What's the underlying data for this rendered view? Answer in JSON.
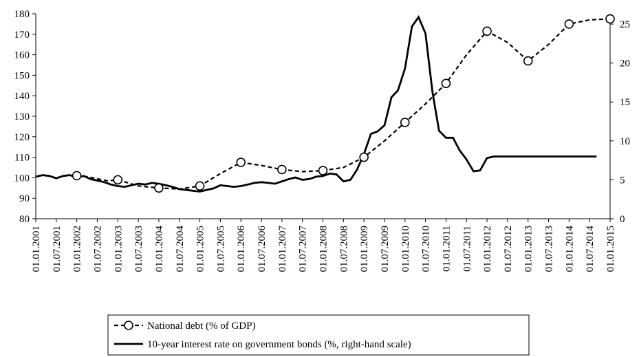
{
  "chart_data": {
    "type": "line",
    "title": "",
    "xlabel": "",
    "ylabel": "",
    "x_ticks": [
      "01.01.2001",
      "01.07.2001",
      "01.01.2002",
      "01.07.2002",
      "01.01.2003",
      "01.07.2003",
      "01.01.2004",
      "01.07.2004",
      "01.01.2005",
      "01.07.2005",
      "01.01.2006",
      "01.07.2006",
      "01.01.2007",
      "01.07.2007",
      "01.01.2008",
      "01.07.2008",
      "01.01.2009",
      "01.07.2009",
      "01.01.2010",
      "01.07.2010",
      "01.01.2011",
      "01.07.2011",
      "01.01.2012",
      "01.07.2012",
      "01.01.2013",
      "01.07.2013",
      "01.01.2014",
      "01.07.2014",
      "01.01.2015"
    ],
    "y_left": {
      "ylim": [
        80,
        180
      ],
      "ticks": [
        "80",
        "90",
        "100",
        "110",
        "120",
        "130",
        "140",
        "150",
        "160",
        "170",
        "180"
      ]
    },
    "y_right": {
      "ylim": [
        0,
        26.33
      ],
      "ticks": [
        "0",
        "5",
        "10",
        "15",
        "20",
        "25"
      ]
    },
    "legend_position": "bottom-center",
    "series": [
      {
        "name": "National debt (% of GDP)",
        "axis": "left",
        "style": "dashed-with-circle-markers",
        "x": [
          2002.0,
          2002.25,
          2002.5,
          2002.75,
          2003.0,
          2003.5,
          2004.0,
          2004.5,
          2005.0,
          2005.5,
          2006.0,
          2006.5,
          2007.0,
          2007.5,
          2008.0,
          2008.5,
          2009.0,
          2009.5,
          2010.0,
          2010.5,
          2011.0,
          2011.5,
          2012.0,
          2012.5,
          2013.0,
          2013.5,
          2014.0,
          2014.5,
          2015.0
        ],
        "values": [
          101,
          100.5,
          99.5,
          98.5,
          99,
          96,
          95,
          94.5,
          96,
          102,
          107.5,
          106,
          104,
          103,
          103.5,
          105,
          110,
          118,
          127,
          136,
          146,
          160,
          171.5,
          166,
          157,
          165,
          175,
          177,
          177.5
        ],
        "markers_at": [
          2002.0,
          2003.0,
          2004.0,
          2005.0,
          2006.0,
          2007.0,
          2008.0,
          2009.0,
          2010.0,
          2011.0,
          2012.0,
          2013.0,
          2014.0,
          2015.0
        ]
      },
      {
        "name": "10-year interest rate on government bonds (%, right-hand scale)",
        "axis": "right",
        "style": "solid",
        "x": [
          2001.0,
          2001.17,
          2001.33,
          2001.5,
          2001.67,
          2001.83,
          2002.0,
          2002.17,
          2002.33,
          2002.5,
          2002.67,
          2002.83,
          2003.0,
          2003.17,
          2003.33,
          2003.5,
          2003.67,
          2003.83,
          2004.0,
          2004.17,
          2004.33,
          2004.5,
          2004.67,
          2004.83,
          2005.0,
          2005.17,
          2005.33,
          2005.5,
          2005.67,
          2005.83,
          2006.0,
          2006.17,
          2006.33,
          2006.5,
          2006.67,
          2006.83,
          2007.0,
          2007.17,
          2007.33,
          2007.5,
          2007.67,
          2007.83,
          2008.0,
          2008.17,
          2008.33,
          2008.5,
          2008.67,
          2008.83,
          2009.0,
          2009.17,
          2009.33,
          2009.5,
          2009.67,
          2009.83,
          2010.0,
          2010.17,
          2010.33,
          2010.5,
          2010.67,
          2010.83,
          2011.0,
          2011.17,
          2011.33,
          2011.5,
          2011.67,
          2011.83,
          2012.0,
          2012.17,
          2012.33,
          2012.5,
          2012.67,
          2012.83,
          2013.0,
          2013.17,
          2013.33,
          2013.5,
          2013.67,
          2013.83,
          2014.0,
          2014.17,
          2014.33,
          2014.5,
          2014.67
        ],
        "values": [
          5.4,
          5.6,
          5.5,
          5.2,
          5.5,
          5.6,
          5.3,
          5.5,
          5.1,
          4.9,
          4.7,
          4.4,
          4.2,
          4.1,
          4.3,
          4.5,
          4.4,
          4.6,
          4.5,
          4.3,
          4.1,
          3.8,
          3.7,
          3.6,
          3.5,
          3.7,
          3.9,
          4.3,
          4.2,
          4.1,
          4.2,
          4.4,
          4.6,
          4.7,
          4.6,
          4.5,
          4.8,
          5.1,
          5.3,
          5.0,
          5.1,
          5.4,
          5.5,
          5.8,
          5.7,
          4.8,
          5.0,
          6.3,
          8.3,
          10.9,
          11.2,
          12.0,
          15.6,
          16.5,
          19.3,
          24.7,
          25.9,
          23.8,
          16.3,
          11.3,
          10.4,
          10.4,
          8.8,
          7.6,
          6.1,
          6.2,
          7.8,
          8.0,
          8.0,
          8.0,
          8.0,
          8.0,
          8.0,
          8.0,
          8.0,
          8.0,
          8.0,
          8.0,
          8.0,
          8.0,
          8.0,
          8.0,
          8.0
        ],
        "values_note": ""
      }
    ]
  },
  "legend": {
    "items": [
      {
        "label": "National debt (% of GDP)"
      },
      {
        "label": "10-year interest rate on government bonds (%, right-hand scale)"
      }
    ]
  }
}
